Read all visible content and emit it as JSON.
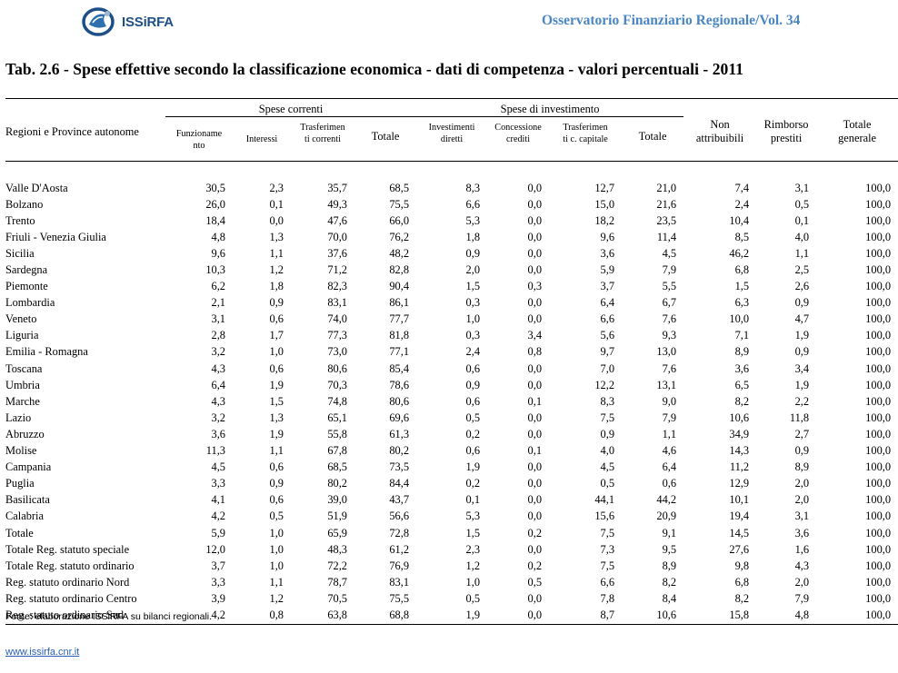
{
  "header": {
    "brand": "ISSiRFA",
    "publication": "Osservatorio Finanziario Regionale/Vol. 34"
  },
  "title": "Tab. 2.6 - Spese effettive secondo la classificazione economica - dati di competenza - valori percentuali - 2011",
  "table": {
    "region_header": "Regioni e Province autonome",
    "groups": {
      "current": "Spese correnti",
      "investment": "Spese di investimento"
    },
    "columns": [
      "Funzioname\nnto",
      "Interessi",
      "Trasferimen\nti correnti",
      "Totale",
      "Investimenti\ndiretti",
      "Concessione\ncrediti",
      "Trasferimen\nti c. capitale",
      "Totale",
      "Non\nattribuibili",
      "Rimborso\nprestiti",
      "Totale\ngenerale"
    ],
    "rows": [
      {
        "name": "Valle D'Aosta",
        "values": [
          "30,5",
          "2,3",
          "35,7",
          "68,5",
          "8,3",
          "0,0",
          "12,7",
          "21,0",
          "7,4",
          "3,1",
          "100,0"
        ]
      },
      {
        "name": "Bolzano",
        "values": [
          "26,0",
          "0,1",
          "49,3",
          "75,5",
          "6,6",
          "0,0",
          "15,0",
          "21,6",
          "2,4",
          "0,5",
          "100,0"
        ]
      },
      {
        "name": "Trento",
        "values": [
          "18,4",
          "0,0",
          "47,6",
          "66,0",
          "5,3",
          "0,0",
          "18,2",
          "23,5",
          "10,4",
          "0,1",
          "100,0"
        ]
      },
      {
        "name": "Friuli - Venezia Giulia",
        "values": [
          "4,8",
          "1,3",
          "70,0",
          "76,2",
          "1,8",
          "0,0",
          "9,6",
          "11,4",
          "8,5",
          "4,0",
          "100,0"
        ]
      },
      {
        "name": "Sicilia",
        "values": [
          "9,6",
          "1,1",
          "37,6",
          "48,2",
          "0,9",
          "0,0",
          "3,6",
          "4,5",
          "46,2",
          "1,1",
          "100,0"
        ]
      },
      {
        "name": "Sardegna",
        "values": [
          "10,3",
          "1,2",
          "71,2",
          "82,8",
          "2,0",
          "0,0",
          "5,9",
          "7,9",
          "6,8",
          "2,5",
          "100,0"
        ]
      },
      {
        "name": "Piemonte",
        "values": [
          "6,2",
          "1,8",
          "82,3",
          "90,4",
          "1,5",
          "0,3",
          "3,7",
          "5,5",
          "1,5",
          "2,6",
          "100,0"
        ]
      },
      {
        "name": "Lombardia",
        "values": [
          "2,1",
          "0,9",
          "83,1",
          "86,1",
          "0,3",
          "0,0",
          "6,4",
          "6,7",
          "6,3",
          "0,9",
          "100,0"
        ]
      },
      {
        "name": "Veneto",
        "values": [
          "3,1",
          "0,6",
          "74,0",
          "77,7",
          "1,0",
          "0,0",
          "6,6",
          "7,6",
          "10,0",
          "4,7",
          "100,0"
        ]
      },
      {
        "name": "Liguria",
        "values": [
          "2,8",
          "1,7",
          "77,3",
          "81,8",
          "0,3",
          "3,4",
          "5,6",
          "9,3",
          "7,1",
          "1,9",
          "100,0"
        ]
      },
      {
        "name": "Emilia - Romagna",
        "values": [
          "3,2",
          "1,0",
          "73,0",
          "77,1",
          "2,4",
          "0,8",
          "9,7",
          "13,0",
          "8,9",
          "0,9",
          "100,0"
        ]
      },
      {
        "name": "Toscana",
        "values": [
          "4,3",
          "0,6",
          "80,6",
          "85,4",
          "0,6",
          "0,0",
          "7,0",
          "7,6",
          "3,6",
          "3,4",
          "100,0"
        ]
      },
      {
        "name": "Umbria",
        "values": [
          "6,4",
          "1,9",
          "70,3",
          "78,6",
          "0,9",
          "0,0",
          "12,2",
          "13,1",
          "6,5",
          "1,9",
          "100,0"
        ]
      },
      {
        "name": "Marche",
        "values": [
          "4,3",
          "1,5",
          "74,8",
          "80,6",
          "0,6",
          "0,1",
          "8,3",
          "9,0",
          "8,2",
          "2,2",
          "100,0"
        ]
      },
      {
        "name": "Lazio",
        "values": [
          "3,2",
          "1,3",
          "65,1",
          "69,6",
          "0,5",
          "0,0",
          "7,5",
          "7,9",
          "10,6",
          "11,8",
          "100,0"
        ]
      },
      {
        "name": "Abruzzo",
        "values": [
          "3,6",
          "1,9",
          "55,8",
          "61,3",
          "0,2",
          "0,0",
          "0,9",
          "1,1",
          "34,9",
          "2,7",
          "100,0"
        ]
      },
      {
        "name": "Molise",
        "values": [
          "11,3",
          "1,1",
          "67,8",
          "80,2",
          "0,6",
          "0,1",
          "4,0",
          "4,6",
          "14,3",
          "0,9",
          "100,0"
        ]
      },
      {
        "name": "Campania",
        "values": [
          "4,5",
          "0,6",
          "68,5",
          "73,5",
          "1,9",
          "0,0",
          "4,5",
          "6,4",
          "11,2",
          "8,9",
          "100,0"
        ]
      },
      {
        "name": "Puglia",
        "values": [
          "3,3",
          "0,9",
          "80,2",
          "84,4",
          "0,2",
          "0,0",
          "0,5",
          "0,6",
          "12,9",
          "2,0",
          "100,0"
        ]
      },
      {
        "name": "Basilicata",
        "values": [
          "4,1",
          "0,6",
          "39,0",
          "43,7",
          "0,1",
          "0,0",
          "44,1",
          "44,2",
          "10,1",
          "2,0",
          "100,0"
        ]
      },
      {
        "name": "Calabria",
        "values": [
          "4,2",
          "0,5",
          "51,9",
          "56,6",
          "5,3",
          "0,0",
          "15,6",
          "20,9",
          "19,4",
          "3,1",
          "100,0"
        ]
      },
      {
        "name": "Totale",
        "values": [
          "5,9",
          "1,0",
          "65,9",
          "72,8",
          "1,5",
          "0,2",
          "7,5",
          "9,1",
          "14,5",
          "3,6",
          "100,0"
        ]
      },
      {
        "name": "Totale Reg. statuto speciale",
        "values": [
          "12,0",
          "1,0",
          "48,3",
          "61,2",
          "2,3",
          "0,0",
          "7,3",
          "9,5",
          "27,6",
          "1,6",
          "100,0"
        ]
      },
      {
        "name": "Totale Reg. statuto ordinario",
        "values": [
          "3,7",
          "1,0",
          "72,2",
          "76,9",
          "1,2",
          "0,2",
          "7,5",
          "8,9",
          "9,8",
          "4,3",
          "100,0"
        ]
      },
      {
        "name": "Reg. statuto ordinario Nord",
        "values": [
          "3,3",
          "1,1",
          "78,7",
          "83,1",
          "1,0",
          "0,5",
          "6,6",
          "8,2",
          "6,8",
          "2,0",
          "100,0"
        ]
      },
      {
        "name": "Reg. statuto ordinario Centro",
        "values": [
          "3,9",
          "1,2",
          "70,5",
          "75,5",
          "0,5",
          "0,0",
          "7,8",
          "8,4",
          "8,2",
          "7,9",
          "100,0"
        ]
      },
      {
        "name": "Reg. statuto ordinario Sud",
        "values": [
          "4,2",
          "0,8",
          "63,8",
          "68,8",
          "1,9",
          "0,0",
          "8,7",
          "10,6",
          "15,8",
          "4,8",
          "100,0"
        ]
      }
    ]
  },
  "source": "Fonte: elaborazione ISSiRFA su bilanci regionali.",
  "footer_link": "www.issirfa.cnr.it",
  "colors": {
    "brand_blue": "#1d4f86",
    "header_blue": "#4a86c3",
    "link_blue": "#2a5fb5"
  }
}
